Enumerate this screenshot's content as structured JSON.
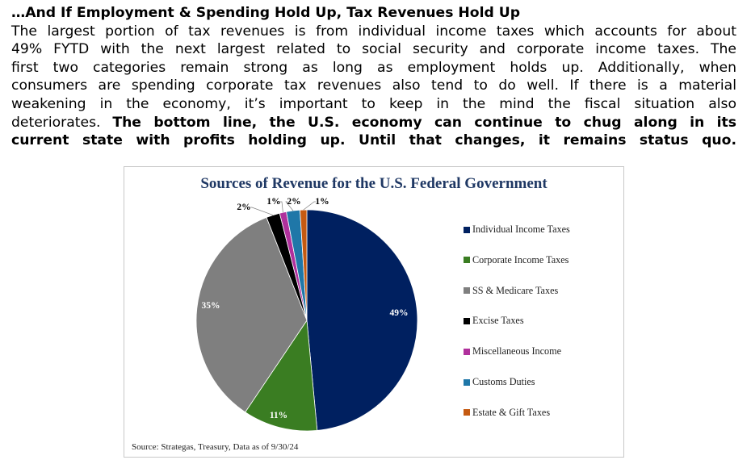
{
  "article": {
    "title": "…And If Employment & Spending Hold Up, Tax Revenues Hold Up",
    "lines": [
      "The largest portion of tax revenues is from individual income taxes which accounts for about",
      "49% FYTD with the next largest related to social security and corporate income taxes. The",
      "first two categories remain strong as long as employment holds up. Additionally, when",
      "consumers are spending corporate tax revenues also tend to do well. If there is a material",
      "weakening in the economy, it’s important to keep in the mind the fiscal situation also"
    ],
    "line7_normal": "deteriorates. ",
    "line7_bold": "The bottom line, the U.S. economy can continue to chug along in its",
    "line8_bold": "current state with profits holding up. Until that changes, it remains status quo."
  },
  "chart_data": {
    "type": "pie",
    "title": "Sources of Revenue for the U.S. Federal Government",
    "categories": [
      "Individual Income Taxes",
      "Corporate Income Taxes",
      "SS & Medicare Taxes",
      "Excise Taxes",
      "Miscellaneous Income",
      "Customs Duties",
      "Estate & Gift Taxes"
    ],
    "values": [
      49,
      11,
      35,
      2,
      1,
      2,
      1
    ],
    "labels": [
      "49%",
      "11%",
      "35%",
      "2%",
      "1%",
      "2%",
      "1%"
    ],
    "colors": [
      "#002060",
      "#3a7d22",
      "#7f7f7f",
      "#000000",
      "#b0309c",
      "#1f77a8",
      "#c55a11"
    ],
    "label_colors": [
      "#ffffff",
      "#ffffff",
      "#ffffff",
      "#000000",
      "#000000",
      "#000000",
      "#000000"
    ],
    "start_angle_deg": 0,
    "direction": "clockwise",
    "legend_position": "right",
    "source": "Source: Strategas, Treasury, Data as of 9/30/24"
  }
}
